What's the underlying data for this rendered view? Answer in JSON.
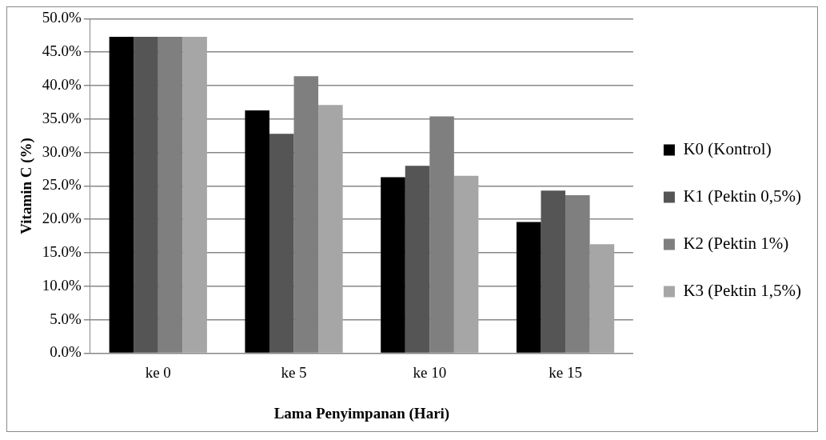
{
  "chart_data": {
    "type": "bar",
    "xlabel": "Lama Penyimpanan (Hari)",
    "ylabel": "Vitamin C (%)",
    "categories": [
      "ke 0",
      "ke 5",
      "ke 10",
      "ke 15"
    ],
    "series": [
      {
        "name": "K0 (Kontrol)",
        "color": "#000000",
        "values": [
          47.3,
          36.3,
          26.3,
          19.6
        ]
      },
      {
        "name": "K1 (Pektin 0,5%)",
        "color": "#555555",
        "values": [
          47.3,
          32.8,
          28.0,
          24.3
        ]
      },
      {
        "name": "K2 (Pektin 1%)",
        "color": "#7f7f7f",
        "values": [
          47.3,
          41.4,
          35.4,
          23.6
        ]
      },
      {
        "name": "K3 (Pektin 1,5%)",
        "color": "#a6a6a6",
        "values": [
          47.3,
          37.1,
          26.5,
          16.3
        ]
      }
    ],
    "ylim": [
      0,
      50
    ],
    "yticks": [
      {
        "value": 0,
        "label": "0.0%"
      },
      {
        "value": 5,
        "label": "5.0%"
      },
      {
        "value": 10,
        "label": "10.0%"
      },
      {
        "value": 15,
        "label": "15.0%"
      },
      {
        "value": 20,
        "label": "20.0%"
      },
      {
        "value": 25,
        "label": "25.0%"
      },
      {
        "value": 30,
        "label": "30.0%"
      },
      {
        "value": 35,
        "label": "35.0%"
      },
      {
        "value": 40,
        "label": "40.0%"
      },
      {
        "value": 45,
        "label": "45.0%"
      },
      {
        "value": 50,
        "label": "50.0%"
      }
    ],
    "grid": "y",
    "legend": "right"
  }
}
